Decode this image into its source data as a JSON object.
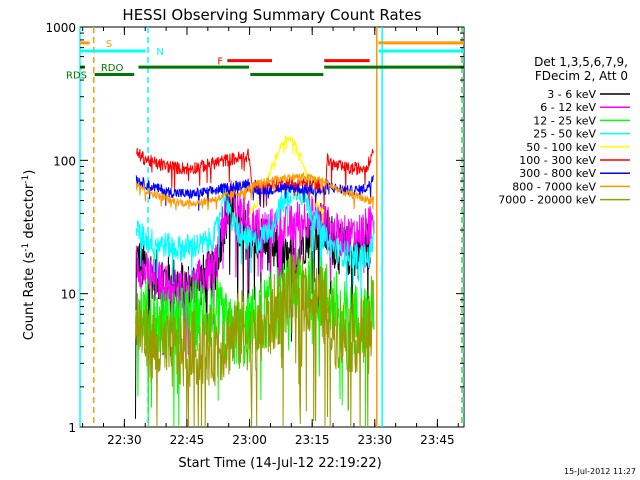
{
  "chart_data": {
    "type": "line",
    "title": "HESSI Observing Summary Count Rates",
    "xlabel": "Start Time (14-Jul-12 22:19:22)",
    "ylabel_main": "Count Rate (s",
    "ylabel_sup1": "-1",
    "ylabel_mid": " detector",
    "ylabel_sup2": "-1",
    "ylabel_end": ")",
    "y_scale": "log",
    "ylim": [
      1,
      1000
    ],
    "y_ticks": [
      {
        "value": 1,
        "label": "1"
      },
      {
        "value": 10,
        "label": "10"
      },
      {
        "value": 100,
        "label": "100"
      },
      {
        "value": 1000,
        "label": "1000"
      }
    ],
    "xlim_minutes": [
      0,
      92
    ],
    "x_ticks": [
      {
        "minute": 10.63,
        "label": "22:30"
      },
      {
        "minute": 25.63,
        "label": "22:45"
      },
      {
        "minute": 40.63,
        "label": "23:00"
      },
      {
        "minute": 55.63,
        "label": "23:15"
      },
      {
        "minute": 70.63,
        "label": "23:30"
      },
      {
        "minute": 85.63,
        "label": "23:45"
      }
    ],
    "legend_header": [
      "Det 1,3,5,6,7,9,",
      "FDecim 2, Att 0"
    ],
    "legend_placement": "right",
    "series": [
      {
        "name": "3 - 6 keV",
        "color": "#000000",
        "noise": 0.2,
        "points": [
          [
            13.3,
            1
          ],
          [
            13.5,
            18
          ],
          [
            15,
            16
          ],
          [
            17.5,
            14
          ],
          [
            20,
            13
          ],
          [
            23,
            12
          ],
          [
            26,
            11
          ],
          [
            28,
            12
          ],
          [
            30,
            13
          ],
          [
            32,
            14
          ],
          [
            33.5,
            25
          ],
          [
            35,
            38
          ],
          [
            36.5,
            46
          ],
          [
            38,
            30
          ],
          [
            40,
            28
          ],
          [
            42,
            27
          ],
          [
            44,
            25
          ],
          [
            46,
            22
          ],
          [
            48,
            18
          ],
          [
            50,
            17
          ],
          [
            51.5,
            19
          ],
          [
            53.5,
            25
          ],
          [
            55.5,
            31
          ],
          [
            57.5,
            32
          ],
          [
            59.5,
            28
          ],
          [
            61,
            24
          ],
          [
            62.5,
            21
          ],
          [
            64.5,
            21
          ],
          [
            66.5,
            20
          ],
          [
            68,
            22
          ],
          [
            69.5,
            24
          ]
        ]
      },
      {
        "name": "6 - 12 keV",
        "color": "#ff00ff",
        "noise": 0.16,
        "points": [
          [
            13.5,
            17
          ],
          [
            15,
            15
          ],
          [
            17.5,
            13
          ],
          [
            20,
            12
          ],
          [
            23,
            11
          ],
          [
            26,
            11
          ],
          [
            28,
            12
          ],
          [
            30,
            14
          ],
          [
            32,
            15
          ],
          [
            33.5,
            26
          ],
          [
            35,
            40
          ],
          [
            36.5,
            52
          ],
          [
            38,
            45
          ],
          [
            40,
            36
          ],
          [
            42,
            32
          ],
          [
            44,
            31
          ],
          [
            46,
            31
          ],
          [
            48,
            32
          ],
          [
            50,
            32
          ],
          [
            52,
            35
          ],
          [
            54,
            37
          ],
          [
            56,
            38
          ],
          [
            58,
            36
          ],
          [
            60,
            30
          ],
          [
            62,
            27
          ],
          [
            64,
            27
          ],
          [
            66,
            28
          ],
          [
            68,
            30
          ],
          [
            69.5,
            32
          ],
          [
            70.5,
            38
          ]
        ]
      },
      {
        "name": "12 - 25 keV",
        "color": "#00ff00",
        "noise": 0.28,
        "points": [
          [
            13.3,
            9
          ],
          [
            14,
            8
          ],
          [
            16,
            7
          ],
          [
            18,
            6
          ],
          [
            21,
            6
          ],
          [
            24,
            6
          ],
          [
            26,
            6.5
          ],
          [
            28,
            7
          ],
          [
            30,
            7
          ],
          [
            32,
            7
          ],
          [
            33,
            7
          ],
          [
            34,
            6
          ],
          [
            36,
            5
          ],
          [
            38,
            5
          ],
          [
            40,
            5
          ],
          [
            41,
            6
          ],
          [
            43,
            6.5
          ],
          [
            45,
            7.5
          ],
          [
            47,
            8.5
          ],
          [
            49,
            9.5
          ],
          [
            51,
            11
          ],
          [
            53,
            11.5
          ],
          [
            55,
            12
          ],
          [
            57,
            11
          ],
          [
            59,
            9.5
          ],
          [
            61,
            8.5
          ],
          [
            62.5,
            7
          ],
          [
            64,
            6.5
          ],
          [
            66,
            6.5
          ],
          [
            68,
            6.5
          ],
          [
            69.5,
            6.5
          ],
          [
            70.5,
            9.5
          ]
        ]
      },
      {
        "name": "25 - 50 keV",
        "color": "#00ffff",
        "noise": 0.1,
        "points": [
          [
            13.5,
            30
          ],
          [
            15,
            27
          ],
          [
            17,
            25
          ],
          [
            19,
            24
          ],
          [
            21,
            23
          ],
          [
            23,
            22
          ],
          [
            25,
            22
          ],
          [
            27,
            23
          ],
          [
            29,
            23
          ],
          [
            31,
            25
          ],
          [
            32.5,
            28
          ],
          [
            33.5,
            40
          ],
          [
            34.5,
            60
          ],
          [
            35.5,
            45
          ],
          [
            36.5,
            34
          ],
          [
            38,
            29
          ],
          [
            40,
            26
          ],
          [
            41.5,
            24
          ],
          [
            43,
            25
          ],
          [
            45,
            30
          ],
          [
            47,
            39
          ],
          [
            49,
            50
          ],
          [
            50.5,
            58
          ],
          [
            52,
            63
          ],
          [
            53.5,
            55
          ],
          [
            55,
            45
          ],
          [
            56.5,
            35
          ],
          [
            58,
            28
          ],
          [
            59.5,
            24
          ],
          [
            61,
            22
          ],
          [
            62.5,
            20
          ],
          [
            64,
            20
          ],
          [
            66,
            19
          ],
          [
            68,
            19
          ],
          [
            69.5,
            19
          ],
          [
            70.5,
            30
          ]
        ]
      },
      {
        "name": "50 - 100 keV",
        "color": "#ffff00",
        "noise": 0.03,
        "points": [
          [
            40.5,
            40
          ],
          [
            42,
            45
          ],
          [
            44,
            60
          ],
          [
            46,
            90
          ],
          [
            48,
            125
          ],
          [
            49.5,
            150
          ],
          [
            51,
            140
          ],
          [
            52.5,
            115
          ],
          [
            54,
            85
          ],
          [
            55.5,
            60
          ],
          [
            57,
            46
          ],
          [
            58.5,
            40
          ]
        ]
      },
      {
        "name": "100 - 300 keV",
        "color": "#ff0000",
        "noise": 0.05,
        "points": [
          [
            13.5,
            115
          ],
          [
            15,
            105
          ],
          [
            17,
            98
          ],
          [
            19,
            93
          ],
          [
            21,
            90
          ],
          [
            23,
            88
          ],
          [
            25,
            87
          ],
          [
            27,
            88
          ],
          [
            29,
            90
          ],
          [
            31,
            93
          ],
          [
            33,
            97
          ],
          [
            35,
            100
          ],
          [
            37,
            103
          ],
          [
            39,
            106
          ],
          [
            40.5,
            110
          ],
          [
            41.2,
            65
          ],
          [
            43,
            62
          ],
          [
            45,
            64
          ],
          [
            47,
            66
          ],
          [
            49,
            67
          ],
          [
            51,
            68
          ],
          [
            53,
            67
          ],
          [
            55,
            66
          ],
          [
            57,
            65
          ],
          [
            58.8,
            64
          ],
          [
            59.2,
            100
          ],
          [
            61,
            92
          ],
          [
            63,
            88
          ],
          [
            65,
            86
          ],
          [
            67,
            87
          ],
          [
            68.5,
            90
          ],
          [
            69.5,
            98
          ],
          [
            70.3,
            130
          ]
        ]
      },
      {
        "name": "300 - 800 keV",
        "color": "#0000ff",
        "noise": 0.04,
        "points": [
          [
            13.5,
            73
          ],
          [
            15,
            68
          ],
          [
            17,
            64
          ],
          [
            19,
            61
          ],
          [
            21,
            58
          ],
          [
            23,
            57
          ],
          [
            25,
            56
          ],
          [
            27,
            56
          ],
          [
            29,
            57
          ],
          [
            31,
            58
          ],
          [
            33,
            60
          ],
          [
            35,
            62
          ],
          [
            37,
            64
          ],
          [
            39,
            66
          ],
          [
            40.5,
            69
          ],
          [
            41.2,
            58
          ],
          [
            43,
            59
          ],
          [
            45,
            60
          ],
          [
            47,
            61
          ],
          [
            49,
            62
          ],
          [
            51,
            62
          ],
          [
            53,
            61
          ],
          [
            55,
            60
          ],
          [
            57,
            59
          ],
          [
            58.8,
            58
          ],
          [
            59.2,
            66
          ],
          [
            61,
            62
          ],
          [
            63,
            60
          ],
          [
            65,
            59
          ],
          [
            67,
            60
          ],
          [
            68.5,
            62
          ],
          [
            69.5,
            66
          ],
          [
            70.3,
            80
          ]
        ]
      },
      {
        "name": "800 - 7000 keV",
        "color": "#ff9900",
        "noise": 0.03,
        "points": [
          [
            13.5,
            70
          ],
          [
            15,
            62
          ],
          [
            17,
            57
          ],
          [
            19,
            54
          ],
          [
            21,
            51
          ],
          [
            23,
            49
          ],
          [
            25,
            48
          ],
          [
            27,
            48
          ],
          [
            29,
            49
          ],
          [
            31,
            50
          ],
          [
            33,
            52
          ],
          [
            35,
            54
          ],
          [
            37,
            56
          ],
          [
            39,
            58
          ],
          [
            41,
            63
          ],
          [
            43,
            67
          ],
          [
            45,
            70
          ],
          [
            47,
            72
          ],
          [
            49,
            74
          ],
          [
            51,
            75
          ],
          [
            53,
            75
          ],
          [
            55,
            74
          ],
          [
            57,
            72
          ],
          [
            59,
            68
          ],
          [
            61,
            62
          ],
          [
            63,
            58
          ],
          [
            65,
            55
          ],
          [
            67,
            53
          ],
          [
            68.5,
            51
          ],
          [
            69.5,
            50
          ],
          [
            70.3,
            52
          ]
        ]
      },
      {
        "name": "7000 - 20000 keV",
        "color": "#999900",
        "noise": 0.3,
        "points": [
          [
            13.3,
            7
          ],
          [
            14,
            6
          ],
          [
            16,
            4.5
          ],
          [
            18,
            4
          ],
          [
            20,
            3.8
          ],
          [
            22,
            3.7
          ],
          [
            24,
            3.7
          ],
          [
            26,
            3.8
          ],
          [
            28,
            3.9
          ],
          [
            30,
            4
          ],
          [
            32,
            4
          ],
          [
            33,
            4.1
          ],
          [
            35,
            4.5
          ],
          [
            37,
            5
          ],
          [
            39,
            5.5
          ],
          [
            40.5,
            5
          ],
          [
            41,
            4
          ],
          [
            43,
            5
          ],
          [
            45,
            6
          ],
          [
            47,
            7.5
          ],
          [
            49,
            9
          ],
          [
            51,
            10
          ],
          [
            53,
            10
          ],
          [
            55,
            9.5
          ],
          [
            57,
            8.5
          ],
          [
            58.8,
            8
          ],
          [
            59.2,
            6
          ],
          [
            61,
            5.5
          ],
          [
            63,
            5
          ],
          [
            65,
            5
          ],
          [
            67,
            5
          ],
          [
            68.5,
            5
          ],
          [
            69.5,
            5
          ],
          [
            70.3,
            7
          ]
        ]
      }
    ],
    "flag_markers": [
      {
        "label": "S",
        "color": "#ff9900",
        "y_value": 760,
        "segments": [
          [
            0,
            2.3
          ],
          [
            71.5,
            92
          ]
        ]
      },
      {
        "label": "N",
        "color": "#00ffff",
        "y_value": 660,
        "segments": [
          [
            0,
            15.7
          ],
          [
            71.5,
            92
          ]
        ]
      },
      {
        "label": "F",
        "color": "#ff0000",
        "y_value": 560,
        "segments": [
          [
            35.3,
            46
          ],
          [
            58.5,
            69.4
          ]
        ]
      },
      {
        "label": "RDO",
        "color": "#007700",
        "y_value": 500,
        "segments": [
          [
            0,
            1.2
          ],
          [
            14,
            40.5
          ],
          [
            58.5,
            92
          ]
        ]
      },
      {
        "label": "RDS",
        "color": "#007700",
        "y_value": 440,
        "segments": [
          [
            3.5,
            13
          ],
          [
            40.8,
            58.3
          ]
        ]
      }
    ],
    "vertical_markers": [
      {
        "minute": 0,
        "color": "#00ffff",
        "dashed": false
      },
      {
        "minute": 3.3,
        "color": "#ff9900",
        "dashed": true
      },
      {
        "minute": 16.3,
        "color": "#00ffff",
        "dashed": true
      },
      {
        "minute": 71.1,
        "color": "#ff9900",
        "dashed": false
      },
      {
        "minute": 72.4,
        "color": "#00ffff",
        "dashed": false
      },
      {
        "minute": 91.5,
        "color": "#ff9900",
        "dashed": true
      },
      {
        "minute": 91.8,
        "color": "#00ffff",
        "dashed": true
      }
    ]
  },
  "timestamp": "15-Jul-2012 11:27"
}
